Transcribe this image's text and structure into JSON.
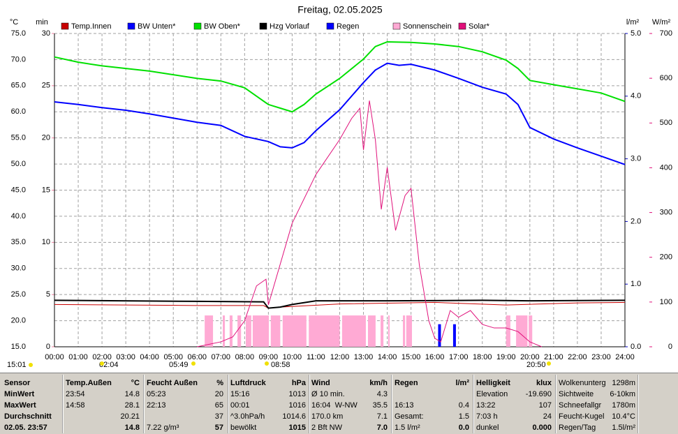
{
  "chart_data": {
    "type": "line",
    "title": "Freitag, 02.05.2025",
    "ylabel": "°C",
    "y4label": "min",
    "y2label": "l/m²",
    "y3label": "W/m²",
    "xlim": [
      0,
      24
    ],
    "xticks": [
      {
        "value": 0,
        "label": "00:00"
      },
      {
        "value": 1,
        "label": "01:00"
      },
      {
        "value": 2,
        "label": "02:00"
      },
      {
        "value": 3,
        "label": "03:00"
      },
      {
        "value": 4,
        "label": "04:00"
      },
      {
        "value": 5,
        "label": "05:00"
      },
      {
        "value": 6,
        "label": "06:00"
      },
      {
        "value": 7,
        "label": "07:00"
      },
      {
        "value": 8,
        "label": "08:00"
      },
      {
        "value": 9,
        "label": "09:00"
      },
      {
        "value": 10,
        "label": "10:00"
      },
      {
        "value": 11,
        "label": "11:00"
      },
      {
        "value": 12,
        "label": "12:00"
      },
      {
        "value": 13,
        "label": "13:00"
      },
      {
        "value": 14,
        "label": "14:00"
      },
      {
        "value": 15,
        "label": "15:00"
      },
      {
        "value": 16,
        "label": "16:00"
      },
      {
        "value": 17,
        "label": "17:00"
      },
      {
        "value": 18,
        "label": "18:00"
      },
      {
        "value": 19,
        "label": "19:00"
      },
      {
        "value": 20,
        "label": "20:00"
      },
      {
        "value": 21,
        "label": "21:00"
      },
      {
        "value": 22,
        "label": "22:00"
      },
      {
        "value": 23,
        "label": "23:00"
      },
      {
        "value": 24,
        "label": "24:00"
      }
    ],
    "ylim": [
      15,
      75
    ],
    "yticks": [
      {
        "value": 15,
        "label": "15.0"
      },
      {
        "value": 20,
        "label": "20.0"
      },
      {
        "value": 25,
        "label": "25.0"
      },
      {
        "value": 30,
        "label": "30.0"
      },
      {
        "value": 35,
        "label": "35.0"
      },
      {
        "value": 40,
        "label": "40.0"
      },
      {
        "value": 45,
        "label": "45.0"
      },
      {
        "value": 50,
        "label": "50.0"
      },
      {
        "value": 55,
        "label": "55.0"
      },
      {
        "value": 60,
        "label": "60.0"
      },
      {
        "value": 65,
        "label": "65.0"
      },
      {
        "value": 70,
        "label": "70.0"
      },
      {
        "value": 75,
        "label": "75.0"
      }
    ],
    "y4lim": [
      0,
      30
    ],
    "y4ticks": [
      0,
      5,
      10,
      15,
      20,
      25,
      30
    ],
    "y2lim": [
      0,
      5
    ],
    "y2ticks": [
      {
        "value": 0,
        "label": "0.0"
      },
      {
        "value": 1,
        "label": "1.0"
      },
      {
        "value": 2,
        "label": "2.0"
      },
      {
        "value": 3,
        "label": "3.0"
      },
      {
        "value": 4,
        "label": "4.0"
      },
      {
        "value": 5,
        "label": "5.0"
      }
    ],
    "y3lim": [
      0,
      700
    ],
    "y3ticks": [
      0,
      100,
      200,
      300,
      400,
      500,
      600,
      700
    ],
    "grid": true,
    "annotations": [
      "15:01",
      "02:04",
      "05:49",
      "08:58",
      "20:50"
    ],
    "series": [
      {
        "name": "Temp.Innen",
        "color": "#c80000",
        "type": "line",
        "axis": "y",
        "x": [
          0,
          6,
          8.8,
          9,
          9.5,
          12,
          16,
          19,
          22,
          24
        ],
        "values": [
          23.1,
          22.9,
          22.9,
          22.4,
          22.6,
          23.2,
          23.5,
          23.0,
          23.4,
          23.5
        ]
      },
      {
        "name": "BW Unten*",
        "color": "#0000ff",
        "type": "line",
        "axis": "y",
        "x": [
          0,
          1,
          2,
          3,
          4,
          5,
          6,
          7,
          8,
          9,
          9.5,
          10,
          10.5,
          11,
          12,
          13,
          13.5,
          14,
          14.5,
          15,
          16,
          17,
          18,
          19,
          19.5,
          20,
          21,
          22,
          23,
          24
        ],
        "values": [
          61.9,
          61.4,
          60.8,
          60.3,
          59.6,
          58.8,
          58.0,
          57.4,
          55.3,
          54.3,
          53.3,
          53.1,
          54.1,
          56.4,
          60.4,
          65.6,
          68.0,
          69.3,
          68.9,
          69.1,
          68.0,
          66.4,
          64.7,
          63.4,
          61.4,
          57.0,
          54.8,
          53.1,
          51.5,
          49.9
        ]
      },
      {
        "name": "BW Oben*",
        "color": "#00e000",
        "type": "line",
        "axis": "y",
        "x": [
          0,
          1,
          2,
          3,
          4,
          5,
          6,
          7,
          8,
          8.5,
          9,
          9.5,
          10,
          10.5,
          11,
          12,
          13,
          13.5,
          14,
          15,
          16,
          17,
          18,
          19,
          19.5,
          20,
          21,
          22,
          23,
          24
        ],
        "values": [
          70.5,
          69.5,
          68.8,
          68.3,
          67.8,
          67.1,
          66.4,
          65.9,
          64.6,
          63.0,
          61.4,
          60.7,
          60.0,
          61.4,
          63.4,
          66.4,
          70.1,
          72.5,
          73.4,
          73.3,
          73.0,
          72.5,
          71.5,
          69.9,
          68.3,
          66.0,
          65.2,
          64.4,
          63.6,
          62.0
        ]
      },
      {
        "name": "Hzg Vorlauf",
        "color": "#000000",
        "type": "line",
        "axis": "y",
        "x": [
          0,
          6,
          8.8,
          9,
          9.5,
          10,
          11,
          14,
          18,
          20,
          24
        ],
        "values": [
          23.9,
          23.7,
          23.6,
          22.4,
          22.6,
          23.1,
          23.8,
          23.8,
          23.9,
          23.8,
          23.9
        ]
      },
      {
        "name": "Regen",
        "color": "#0000ff",
        "type": "bar",
        "axis": "y2",
        "x": [
          16.2,
          16.83
        ],
        "values": [
          0.36,
          0.36
        ]
      },
      {
        "name": "Sonnenschein",
        "color": "#ffaad4",
        "type": "span",
        "axis": "y4",
        "x": [
          6.32,
          7.08,
          7.37,
          7.7,
          8.05,
          8.34,
          9.1,
          9.6,
          10.7,
          12.1,
          13.19,
          13.72,
          14.04,
          14.66,
          14.8,
          19.0,
          19.42,
          19.95
        ],
        "x2": [
          6.67,
          7.17,
          7.49,
          7.85,
          8.28,
          9.02,
          9.5,
          10.6,
          12.0,
          13.1,
          13.51,
          13.84,
          14.1,
          14.75,
          15.04,
          19.18,
          19.9,
          20.1
        ],
        "values": [
          3,
          3,
          3,
          3,
          3,
          3,
          3,
          3,
          3,
          3,
          3,
          3,
          3,
          3,
          3,
          3,
          3,
          3
        ]
      },
      {
        "name": "Solar*",
        "color": "#e0107a",
        "type": "line",
        "axis": "y3",
        "x": [
          6,
          7,
          7.5,
          8,
          8.5,
          8.9,
          9,
          10,
          11,
          12,
          12.5,
          12.85,
          13,
          13.25,
          13.5,
          13.75,
          14,
          14.35,
          14.75,
          15,
          15.35,
          15.75,
          16,
          16.25,
          16.65,
          17,
          17.5,
          18,
          18.5,
          19,
          19.5,
          20,
          20.5
        ],
        "values": [
          0,
          11,
          22,
          58,
          136,
          151,
          94,
          276,
          385,
          463,
          510,
          533,
          440,
          550,
          463,
          307,
          401,
          260,
          338,
          354,
          183,
          58,
          19,
          11,
          81,
          66,
          81,
          50,
          42,
          42,
          34,
          11,
          0
        ]
      }
    ]
  },
  "table": {
    "header": [
      "Sensor",
      "Temp.Außen",
      "°C",
      "Feucht Außen",
      "%",
      "Luftdruck",
      "hPa",
      "Wind",
      "km/h",
      "Regen",
      "l/m²",
      "Helligkeit",
      "klux",
      "Wolkenunterg",
      "1298m"
    ],
    "rows": [
      [
        "MinWert",
        "23:54",
        "14.8",
        "05:23",
        "20",
        "15:16",
        "1013",
        "Ø 10 min.",
        "4.3",
        null,
        null,
        "Elevation",
        "-19.690",
        "Sichtweite",
        "6-10km"
      ],
      [
        "MaxWert",
        "14:58",
        "28.1",
        "22:13",
        "65",
        "00:01",
        "1016",
        "16:04  W-NW",
        "35.5",
        "16:13",
        "0.4",
        "13:22",
        "107",
        "Schneefallgr",
        "1780m"
      ],
      [
        "Durchschnitt",
        null,
        "20.21",
        null,
        "37",
        "^3.0hPa/h",
        "1014.6",
        "170.0 km",
        "7.1",
        "Gesamt:",
        "1.5",
        "7:03 h",
        "24",
        "Feucht-Kugel",
        "10.4°C"
      ],
      [
        "02.05. 23:57",
        null,
        "14.8",
        "7.22 g/m³",
        "57",
        "bewölkt",
        "1015",
        "2 Bft NW",
        "7.0",
        "1.5 l/m²",
        "0.0",
        "dunkel",
        "0.000",
        "Regen/Tag",
        "1.5l/m²"
      ]
    ]
  }
}
